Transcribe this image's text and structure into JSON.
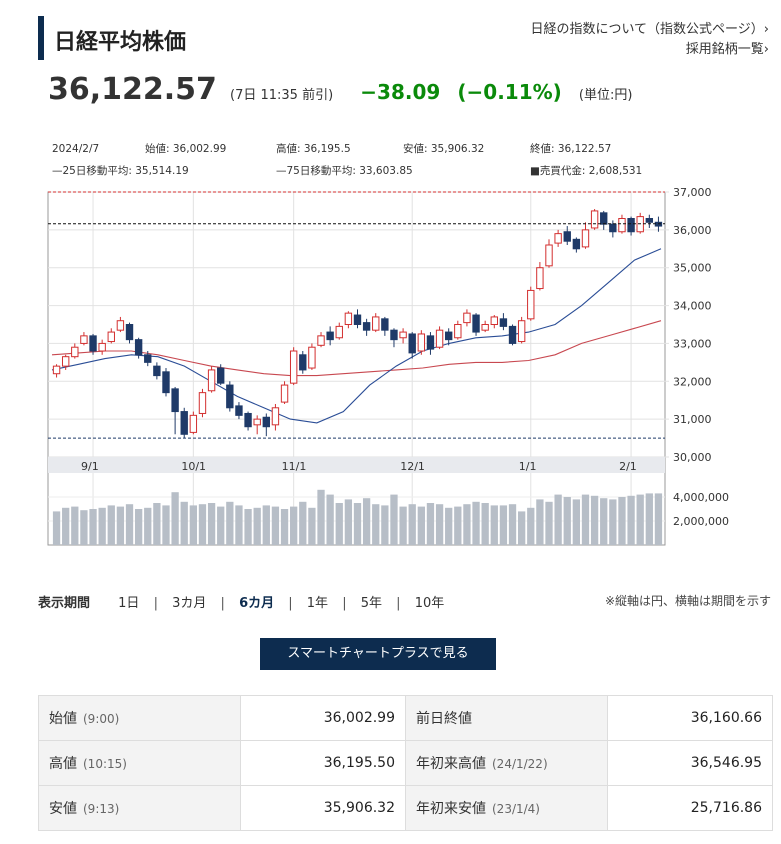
{
  "header": {
    "title": "日経平均株価",
    "link_about": "日経の指数について（指数公式ページ）›",
    "link_constituents": "採用銘柄一覧›"
  },
  "quote": {
    "price": "36,122.57",
    "time": "(7日 11:35 前引)",
    "change": "−38.09",
    "change_pct": "(−0.11%)",
    "unit": "(単位:円)"
  },
  "info": {
    "date": "2024/2/7",
    "open": "始値: 36,002.99",
    "high": "高値: 36,195.5",
    "low": "安値: 35,906.32",
    "close": "終値: 36,122.57",
    "ma25": "—25日移動平均: 35,514.19",
    "ma75": "—75日移動平均: 33,603.85",
    "volume": "■売買代金: 2,608,531"
  },
  "chart_data": {
    "type": "candlestick",
    "x_labels": [
      "9/1",
      "10/1",
      "11/1",
      "12/1",
      "1/1",
      "2/1"
    ],
    "y_ticks": [
      "37,000",
      "36,000",
      "35,000",
      "34,000",
      "33,000",
      "32,000",
      "31,000",
      "30,000"
    ],
    "ylim": [
      30000,
      37000
    ],
    "volume_ticks": [
      "4,000,000",
      "2,000,000"
    ],
    "reference_high": 37000,
    "reference_last": 36160,
    "reference_low": 30500,
    "ma25": [
      32300,
      32450,
      32600,
      32700,
      32650,
      32400,
      32000,
      31600,
      31300,
      31000,
      30900,
      31200,
      31900,
      32400,
      32800,
      33000,
      33150,
      33200,
      33300,
      33500,
      34000,
      34600,
      35200,
      35500
    ],
    "ma75": [
      32700,
      32750,
      32800,
      32800,
      32700,
      32550,
      32400,
      32300,
      32200,
      32150,
      32150,
      32200,
      32250,
      32300,
      32350,
      32450,
      32500,
      32500,
      32550,
      32700,
      33000,
      33200,
      33400,
      33600
    ],
    "candles": [
      [
        32200,
        32400,
        32100,
        32450
      ],
      [
        32400,
        32650,
        32300,
        32700
      ],
      [
        32650,
        32900,
        32600,
        33000
      ],
      [
        33000,
        33200,
        32950,
        33300
      ],
      [
        33200,
        32800,
        32700,
        33250
      ],
      [
        32800,
        33000,
        32700,
        33100
      ],
      [
        33050,
        33300,
        33000,
        33400
      ],
      [
        33350,
        33600,
        33300,
        33700
      ],
      [
        33500,
        33100,
        33000,
        33550
      ],
      [
        33100,
        32700,
        32600,
        33150
      ],
      [
        32700,
        32500,
        32400,
        32800
      ],
      [
        32400,
        32150,
        32050,
        32500
      ],
      [
        32250,
        31700,
        31600,
        32350
      ],
      [
        31800,
        31200,
        30600,
        31850
      ],
      [
        31200,
        30600,
        30500,
        31300
      ],
      [
        30650,
        31100,
        30600,
        31200
      ],
      [
        31150,
        31700,
        31050,
        31800
      ],
      [
        31750,
        32300,
        31700,
        32400
      ],
      [
        32350,
        31950,
        31900,
        32450
      ],
      [
        31900,
        31300,
        31200,
        32000
      ],
      [
        31350,
        31100,
        31000,
        31450
      ],
      [
        31150,
        30800,
        30700,
        31200
      ],
      [
        30850,
        31000,
        30600,
        31100
      ],
      [
        31050,
        30800,
        30550,
        31150
      ],
      [
        30850,
        31300,
        30700,
        31400
      ],
      [
        31450,
        31900,
        31400,
        32000
      ],
      [
        31950,
        32800,
        31900,
        32900
      ],
      [
        32700,
        32300,
        32200,
        32800
      ],
      [
        32350,
        32900,
        32300,
        33000
      ],
      [
        32950,
        33200,
        32900,
        33300
      ],
      [
        33300,
        33100,
        32950,
        33450
      ],
      [
        33150,
        33450,
        33100,
        33550
      ],
      [
        33500,
        33800,
        33400,
        33850
      ],
      [
        33750,
        33500,
        33400,
        33900
      ],
      [
        33550,
        33350,
        33200,
        33650
      ],
      [
        33350,
        33700,
        33300,
        33800
      ],
      [
        33650,
        33350,
        33200,
        33700
      ],
      [
        33350,
        33100,
        32900,
        33400
      ],
      [
        33150,
        33300,
        33000,
        33400
      ],
      [
        33250,
        32750,
        32600,
        33300
      ],
      [
        32800,
        33250,
        32700,
        33350
      ],
      [
        33200,
        32850,
        32700,
        33300
      ],
      [
        32900,
        33350,
        32850,
        33450
      ],
      [
        33300,
        33100,
        32950,
        33400
      ],
      [
        33150,
        33500,
        33100,
        33600
      ],
      [
        33550,
        33800,
        33450,
        33900
      ],
      [
        33750,
        33300,
        33200,
        33800
      ],
      [
        33350,
        33500,
        33300,
        33600
      ],
      [
        33500,
        33700,
        33400,
        33750
      ],
      [
        33650,
        33450,
        33350,
        33800
      ],
      [
        33450,
        33000,
        32950,
        33500
      ],
      [
        33050,
        33600,
        33000,
        33700
      ],
      [
        33650,
        34400,
        33600,
        34500
      ],
      [
        34450,
        35000,
        34400,
        35150
      ],
      [
        35050,
        35600,
        35000,
        35750
      ],
      [
        35650,
        35900,
        35550,
        36000
      ],
      [
        35950,
        35700,
        35600,
        36100
      ],
      [
        35750,
        35500,
        35400,
        35800
      ],
      [
        35550,
        36000,
        35500,
        36200
      ],
      [
        36050,
        36500,
        36000,
        36550
      ],
      [
        36450,
        36150,
        36000,
        36500
      ],
      [
        36150,
        35950,
        35800,
        36250
      ],
      [
        35950,
        36300,
        35900,
        36400
      ],
      [
        36300,
        35950,
        35850,
        36350
      ],
      [
        35950,
        36350,
        35900,
        36450
      ],
      [
        36300,
        36200,
        36050,
        36400
      ],
      [
        36200,
        36100,
        35950,
        36350
      ]
    ],
    "volume": [
      2.8,
      3.1,
      3.2,
      2.9,
      3.0,
      3.1,
      3.3,
      3.2,
      3.4,
      3.0,
      3.1,
      3.5,
      3.3,
      4.4,
      3.6,
      3.3,
      3.4,
      3.5,
      3.2,
      3.6,
      3.3,
      3.0,
      3.1,
      3.3,
      3.2,
      3.0,
      3.2,
      3.6,
      3.1,
      4.6,
      4.2,
      3.5,
      3.8,
      3.5,
      3.9,
      3.4,
      3.3,
      4.2,
      3.2,
      3.4,
      3.2,
      3.5,
      3.4,
      3.1,
      3.2,
      3.4,
      3.6,
      3.5,
      3.3,
      3.3,
      3.4,
      2.8,
      3.1,
      3.8,
      3.6,
      4.2,
      4.0,
      3.8,
      4.2,
      4.1,
      3.9,
      3.8,
      4.0,
      4.1,
      4.2,
      4.3,
      4.3
    ]
  },
  "period": {
    "label": "表示期間",
    "options": [
      "1日",
      "3カ月",
      "6カ月",
      "1年",
      "5年",
      "10年"
    ],
    "note": "※縦軸は円、横軸は期間を示す"
  },
  "smart_button": "スマートチャートプラスで見る",
  "stats": {
    "open_label": "始値",
    "open_time": "(9:00)",
    "open_value": "36,002.99",
    "prev_close_label": "前日終値",
    "prev_close_value": "36,160.66",
    "high_label": "高値",
    "high_time": "(10:15)",
    "high_value": "36,195.50",
    "ytd_high_label": "年初来高値",
    "ytd_high_date": "(24/1/22)",
    "ytd_high_value": "36,546.95",
    "low_label": "安値",
    "low_time": "(9:13)",
    "low_value": "35,906.32",
    "ytd_low_label": "年初来安値",
    "ytd_low_date": "(23/1/4)",
    "ytd_low_value": "25,716.86"
  },
  "colors": {
    "up": "#d32f2f",
    "down": "#1f3a68",
    "ma25": "#2a4d96",
    "ma75": "#c84850",
    "volume": "#b7bec7",
    "change": "#0a8a0a",
    "navy": "#0d2c4f"
  }
}
